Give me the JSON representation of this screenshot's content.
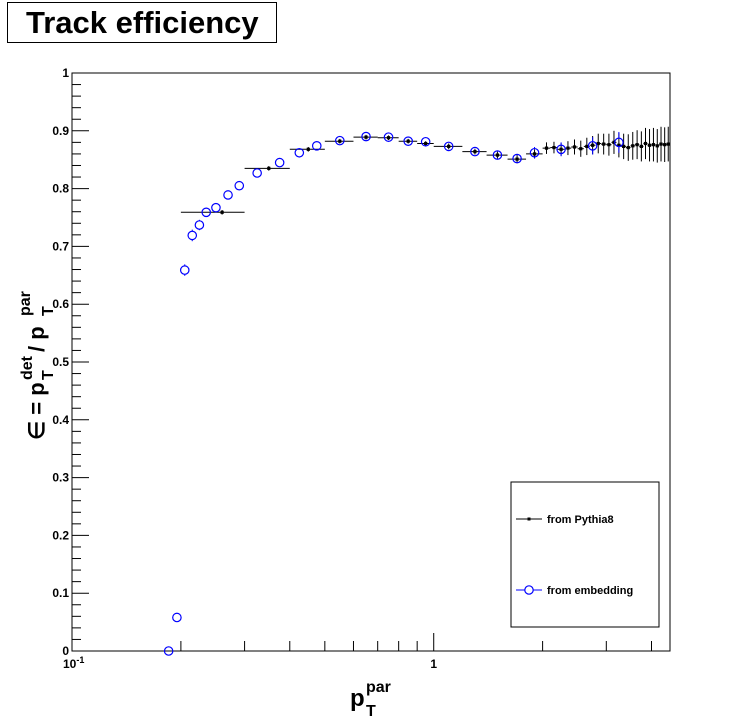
{
  "chart_data": {
    "type": "scatter",
    "title": "Track efficiency",
    "xlabel": {
      "base": "p",
      "sub": "T",
      "sup": "par"
    },
    "ylabel": {
      "prefix": "∈ = ",
      "num_base": "p",
      "num_sub": "T",
      "num_sup": "det",
      "sep": " / ",
      "den_base": "p",
      "den_sub": "T",
      "den_sup": "par"
    },
    "x_scale": "log",
    "xlim": [
      0.1,
      4.5
    ],
    "ylim": [
      0,
      1
    ],
    "x_tick_labels": [
      {
        "value": 0.1,
        "base": "10",
        "exp": "-1"
      },
      {
        "value": 1,
        "base": "1",
        "exp": ""
      }
    ],
    "y_tick_labels": [
      "0",
      "0.1",
      "0.2",
      "0.3",
      "0.4",
      "0.5",
      "0.6",
      "0.7",
      "0.8",
      "0.9",
      "1"
    ],
    "grid": false,
    "legend_position": "bottom-right",
    "series": [
      {
        "name": "from Pythia8",
        "color": "#000000",
        "marker": "dot",
        "points": [
          {
            "x": 0.26,
            "xlo": 0.2,
            "xhi": 0.3,
            "y": 0.759,
            "err": 0.004
          },
          {
            "x": 0.35,
            "xlo": 0.3,
            "xhi": 0.4,
            "y": 0.835,
            "err": 0.004
          },
          {
            "x": 0.45,
            "xlo": 0.4,
            "xhi": 0.5,
            "y": 0.868,
            "err": 0.004
          },
          {
            "x": 0.55,
            "xlo": 0.5,
            "xhi": 0.6,
            "y": 0.882,
            "err": 0.004
          },
          {
            "x": 0.65,
            "xlo": 0.6,
            "xhi": 0.7,
            "y": 0.889,
            "err": 0.004
          },
          {
            "x": 0.75,
            "xlo": 0.7,
            "xhi": 0.8,
            "y": 0.888,
            "err": 0.004
          },
          {
            "x": 0.85,
            "xlo": 0.8,
            "xhi": 0.9,
            "y": 0.882,
            "err": 0.004
          },
          {
            "x": 0.95,
            "xlo": 0.9,
            "xhi": 1.0,
            "y": 0.878,
            "err": 0.004
          },
          {
            "x": 1.1,
            "xlo": 1.0,
            "xhi": 1.2,
            "y": 0.873,
            "err": 0.005
          },
          {
            "x": 1.3,
            "xlo": 1.2,
            "xhi": 1.4,
            "y": 0.864,
            "err": 0.005
          },
          {
            "x": 1.5,
            "xlo": 1.4,
            "xhi": 1.6,
            "y": 0.858,
            "err": 0.006
          },
          {
            "x": 1.7,
            "xlo": 1.6,
            "xhi": 1.8,
            "y": 0.851,
            "err": 0.007
          },
          {
            "x": 1.9,
            "xlo": 1.8,
            "xhi": 2.0,
            "y": 0.86,
            "err": 0.008
          },
          {
            "x": 2.05,
            "xlo": 2.0,
            "xhi": 2.1,
            "y": 0.87,
            "err": 0.01
          },
          {
            "x": 2.15,
            "xlo": 2.1,
            "xhi": 2.2,
            "y": 0.871,
            "err": 0.01
          },
          {
            "x": 2.25,
            "xlo": 2.2,
            "xhi": 2.3,
            "y": 0.868,
            "err": 0.011
          },
          {
            "x": 2.35,
            "xlo": 2.3,
            "xhi": 2.4,
            "y": 0.87,
            "err": 0.012
          },
          {
            "x": 2.45,
            "xlo": 2.4,
            "xhi": 2.5,
            "y": 0.872,
            "err": 0.013
          },
          {
            "x": 2.55,
            "xlo": 2.5,
            "xhi": 2.6,
            "y": 0.869,
            "err": 0.014
          },
          {
            "x": 2.65,
            "xlo": 2.6,
            "xhi": 2.7,
            "y": 0.873,
            "err": 0.015
          },
          {
            "x": 2.75,
            "xlo": 2.7,
            "xhi": 2.8,
            "y": 0.875,
            "err": 0.016
          },
          {
            "x": 2.85,
            "xlo": 2.8,
            "xhi": 2.9,
            "y": 0.878,
            "err": 0.017
          },
          {
            "x": 2.95,
            "xlo": 2.9,
            "xhi": 3.0,
            "y": 0.877,
            "err": 0.018
          },
          {
            "x": 3.05,
            "xlo": 3.0,
            "xhi": 3.1,
            "y": 0.876,
            "err": 0.019
          },
          {
            "x": 3.15,
            "xlo": 3.1,
            "xhi": 3.2,
            "y": 0.88,
            "err": 0.02
          },
          {
            "x": 3.25,
            "xlo": 3.2,
            "xhi": 3.3,
            "y": 0.875,
            "err": 0.021
          },
          {
            "x": 3.35,
            "xlo": 3.3,
            "xhi": 3.4,
            "y": 0.873,
            "err": 0.022
          },
          {
            "x": 3.45,
            "xlo": 3.4,
            "xhi": 3.5,
            "y": 0.871,
            "err": 0.023
          },
          {
            "x": 3.55,
            "xlo": 3.5,
            "xhi": 3.6,
            "y": 0.874,
            "err": 0.024
          },
          {
            "x": 3.65,
            "xlo": 3.6,
            "xhi": 3.7,
            "y": 0.876,
            "err": 0.025
          },
          {
            "x": 3.75,
            "xlo": 3.7,
            "xhi": 3.8,
            "y": 0.873,
            "err": 0.026
          },
          {
            "x": 3.85,
            "xlo": 3.8,
            "xhi": 3.9,
            "y": 0.878,
            "err": 0.027
          },
          {
            "x": 3.95,
            "xlo": 3.9,
            "xhi": 4.0,
            "y": 0.875,
            "err": 0.028
          },
          {
            "x": 4.05,
            "xlo": 4.0,
            "xhi": 4.1,
            "y": 0.876,
            "err": 0.029
          },
          {
            "x": 4.15,
            "xlo": 4.1,
            "xhi": 4.2,
            "y": 0.874,
            "err": 0.029
          },
          {
            "x": 4.25,
            "xlo": 4.2,
            "xhi": 4.3,
            "y": 0.877,
            "err": 0.03
          },
          {
            "x": 4.35,
            "xlo": 4.3,
            "xhi": 4.4,
            "y": 0.876,
            "err": 0.03
          },
          {
            "x": 4.45,
            "xlo": 4.4,
            "xhi": 4.5,
            "y": 0.877,
            "err": 0.03
          }
        ]
      },
      {
        "name": "from embedding",
        "color": "#0000ff",
        "marker": "open-circle",
        "points": [
          {
            "x": 0.185,
            "y": 0.0,
            "err": 0.003
          },
          {
            "x": 0.195,
            "y": 0.058,
            "err": 0.003
          },
          {
            "x": 0.205,
            "y": 0.659,
            "err": 0.01
          },
          {
            "x": 0.215,
            "y": 0.719,
            "err": 0.01
          },
          {
            "x": 0.225,
            "y": 0.737,
            "err": 0.009
          },
          {
            "x": 0.235,
            "y": 0.759,
            "err": 0.008
          },
          {
            "x": 0.25,
            "y": 0.767,
            "err": 0.007
          },
          {
            "x": 0.27,
            "y": 0.789,
            "err": 0.006
          },
          {
            "x": 0.29,
            "y": 0.805,
            "err": 0.006
          },
          {
            "x": 0.325,
            "y": 0.827,
            "err": 0.005
          },
          {
            "x": 0.375,
            "y": 0.845,
            "err": 0.005
          },
          {
            "x": 0.425,
            "y": 0.862,
            "err": 0.005
          },
          {
            "x": 0.475,
            "y": 0.874,
            "err": 0.004
          },
          {
            "x": 0.55,
            "y": 0.883,
            "err": 0.004
          },
          {
            "x": 0.65,
            "y": 0.89,
            "err": 0.004
          },
          {
            "x": 0.75,
            "y": 0.889,
            "err": 0.004
          },
          {
            "x": 0.85,
            "y": 0.882,
            "err": 0.004
          },
          {
            "x": 0.95,
            "y": 0.881,
            "err": 0.004
          },
          {
            "x": 1.1,
            "y": 0.873,
            "err": 0.005
          },
          {
            "x": 1.3,
            "y": 0.864,
            "err": 0.005
          },
          {
            "x": 1.5,
            "y": 0.858,
            "err": 0.006
          },
          {
            "x": 1.7,
            "y": 0.852,
            "err": 0.008
          },
          {
            "x": 1.9,
            "y": 0.862,
            "err": 0.01
          },
          {
            "x": 2.25,
            "y": 0.868,
            "err": 0.012
          },
          {
            "x": 2.75,
            "y": 0.874,
            "err": 0.015
          },
          {
            "x": 3.25,
            "y": 0.88,
            "err": 0.018
          }
        ]
      }
    ]
  }
}
